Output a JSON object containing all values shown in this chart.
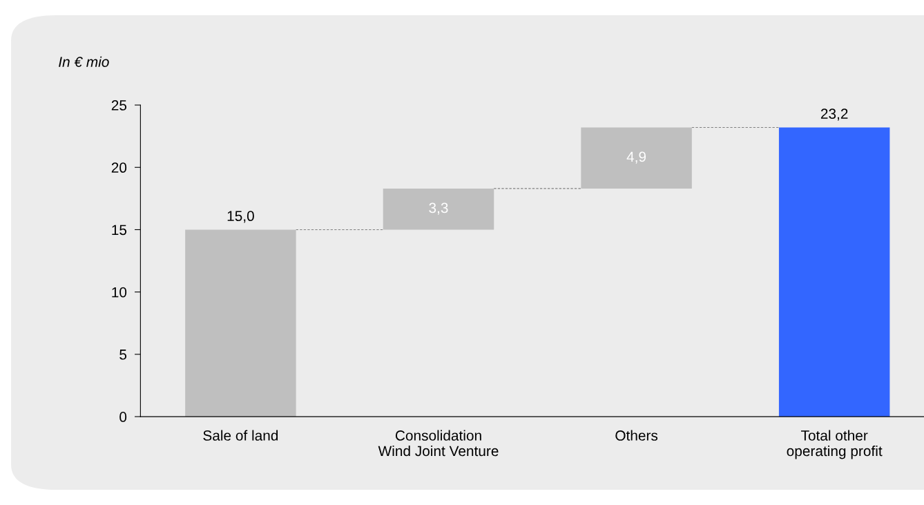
{
  "chart_data": {
    "type": "bar",
    "ylabel": "In € mio",
    "categories": [
      "Sale of land",
      "Consolidation\nWind Joint Venture",
      "Others",
      "Total other\noperating profit"
    ],
    "values": [
      15.0,
      3.3,
      4.9,
      23.2
    ],
    "base": [
      0,
      15.0,
      18.3,
      0
    ],
    "colors": [
      "#bfbfbf",
      "#bfbfbf",
      "#bfbfbf",
      "#3366ff"
    ],
    "value_labels": [
      "15,0",
      "3,3",
      "4,9",
      "23,2"
    ],
    "ylim": [
      0,
      25
    ],
    "yticks": [
      0,
      5,
      10,
      15,
      20,
      25
    ]
  }
}
